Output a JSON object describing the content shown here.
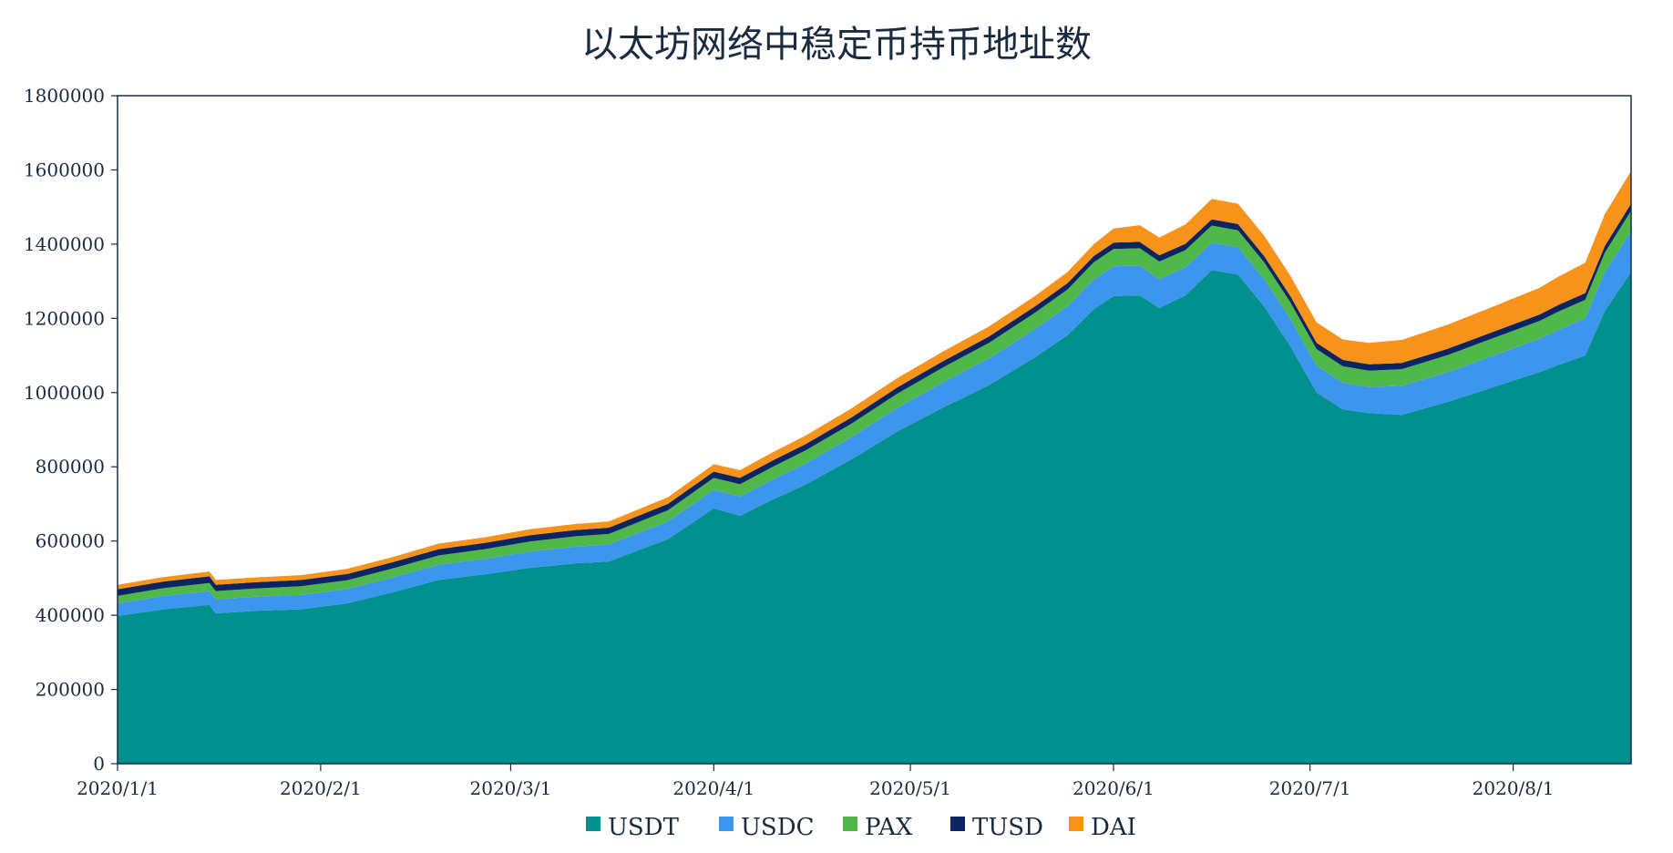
{
  "chart_data": {
    "type": "area",
    "stacked": true,
    "title": "以太坊网络中稳定币持币地址数",
    "xlabel": "",
    "ylabel": "",
    "ylim": [
      0,
      1800000
    ],
    "y_ticks": [
      "0",
      "200000",
      "400000",
      "600000",
      "800000",
      "1000000",
      "1200000",
      "1400000",
      "1600000",
      "1800000"
    ],
    "x_ticks": [
      "2020/1/1",
      "2020/2/1",
      "2020/3/1",
      "2020/4/1",
      "2020/5/1",
      "2020/6/1",
      "2020/7/1",
      "2020/8/1"
    ],
    "grid": false,
    "legend_position": "bottom",
    "x": [
      "2020-01-01",
      "2020-01-08",
      "2020-01-15",
      "2020-01-16",
      "2020-01-22",
      "2020-01-29",
      "2020-02-05",
      "2020-02-12",
      "2020-02-19",
      "2020-02-26",
      "2020-03-04",
      "2020-03-11",
      "2020-03-16",
      "2020-03-25",
      "2020-04-01",
      "2020-04-05",
      "2020-04-10",
      "2020-04-15",
      "2020-04-22",
      "2020-04-29",
      "2020-05-06",
      "2020-05-13",
      "2020-05-20",
      "2020-05-25",
      "2020-05-29",
      "2020-06-01",
      "2020-06-05",
      "2020-06-08",
      "2020-06-12",
      "2020-06-16",
      "2020-06-20",
      "2020-06-24",
      "2020-06-28",
      "2020-07-02",
      "2020-07-06",
      "2020-07-10",
      "2020-07-15",
      "2020-07-22",
      "2020-07-29",
      "2020-08-05",
      "2020-08-08",
      "2020-08-12",
      "2020-08-15",
      "2020-08-19"
    ],
    "series": [
      {
        "name": "USDT",
        "color": "#00918f",
        "values": [
          398000,
          416000,
          428000,
          405000,
          412000,
          416000,
          432000,
          462000,
          495000,
          510000,
          528000,
          540000,
          545000,
          605000,
          688000,
          668000,
          712000,
          752000,
          820000,
          895000,
          960000,
          1020000,
          1095000,
          1155000,
          1225000,
          1260000,
          1262000,
          1228000,
          1262000,
          1330000,
          1318000,
          1232000,
          1125000,
          1000000,
          955000,
          945000,
          940000,
          975000,
          1015000,
          1055000,
          1075000,
          1100000,
          1220000,
          1325000
        ]
      },
      {
        "name": "USDC",
        "color": "#3c96ee",
        "values": [
          34000,
          36000,
          37000,
          38000,
          38000,
          39000,
          39000,
          40000,
          41000,
          42000,
          44000,
          45000,
          46000,
          48000,
          50000,
          52000,
          54000,
          57000,
          60000,
          64000,
          68000,
          72000,
          76000,
          78000,
          80000,
          80000,
          80000,
          78000,
          76000,
          74000,
          74000,
          74000,
          74000,
          73000,
          72000,
          70000,
          78000,
          80000,
          85000,
          90000,
          95000,
          100000,
          105000,
          110000
        ]
      },
      {
        "name": "PAX",
        "color": "#50b848",
        "values": [
          20000,
          21000,
          22000,
          22000,
          22000,
          23000,
          23000,
          24000,
          25000,
          26000,
          27000,
          28000,
          28000,
          30000,
          32000,
          33000,
          34000,
          35000,
          36000,
          38000,
          40000,
          42000,
          44000,
          45000,
          46000,
          47000,
          47000,
          47000,
          46000,
          46000,
          45000,
          45000,
          44000,
          44000,
          44000,
          44000,
          45000,
          46000,
          47000,
          48000,
          49000,
          50000,
          52000,
          55000
        ]
      },
      {
        "name": "TUSD",
        "color": "#0c2461",
        "values": [
          18000,
          18000,
          18000,
          17000,
          17000,
          17000,
          17000,
          17000,
          17000,
          17000,
          17000,
          17000,
          17000,
          17000,
          17000,
          17000,
          17000,
          17000,
          17000,
          17000,
          17000,
          17000,
          17000,
          17000,
          17000,
          17000,
          17000,
          17000,
          17000,
          17000,
          17000,
          17000,
          17000,
          17000,
          17000,
          17000,
          17000,
          17000,
          17000,
          17000,
          18000,
          18000,
          18000,
          19000
        ]
      },
      {
        "name": "DAI",
        "color": "#f7931a",
        "values": [
          12000,
          12000,
          13000,
          13000,
          13000,
          13000,
          14000,
          14000,
          15000,
          15000,
          16000,
          16000,
          17000,
          18000,
          20000,
          21000,
          22000,
          23000,
          24000,
          25000,
          26000,
          27000,
          28000,
          30000,
          32000,
          38000,
          45000,
          48000,
          52000,
          55000,
          55000,
          55000,
          55000,
          55000,
          55000,
          58000,
          62000,
          65000,
          68000,
          72000,
          76000,
          82000,
          86000,
          88000
        ]
      }
    ]
  }
}
